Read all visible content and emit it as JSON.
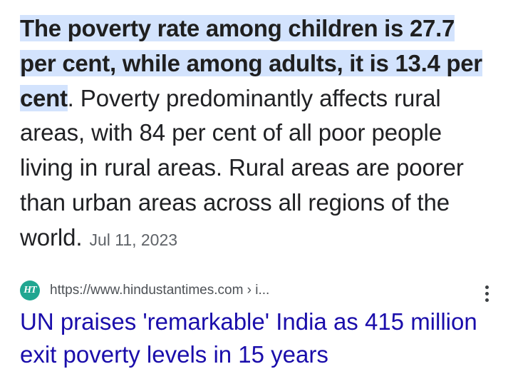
{
  "snippet": {
    "highlight": "The poverty rate among children is 27.7 per cent, while among adults, it is 13.4 per cent",
    "text": ". Poverty predominantly affects rural areas, with 84 per cent of all poor people living in rural areas. Rural areas are poorer than urban areas across all regions of the world.",
    "date": "Jul 11, 2023"
  },
  "source": {
    "favicon_text": "HT",
    "favicon_color": "#21a691",
    "url": "https://www.hindustantimes.com › i..."
  },
  "result": {
    "title": "UN praises 'remarkable' India as 415 million exit poverty levels in 15 years",
    "link_color": "#1a0dab"
  },
  "icons": {
    "more": "more-vert-icon"
  }
}
